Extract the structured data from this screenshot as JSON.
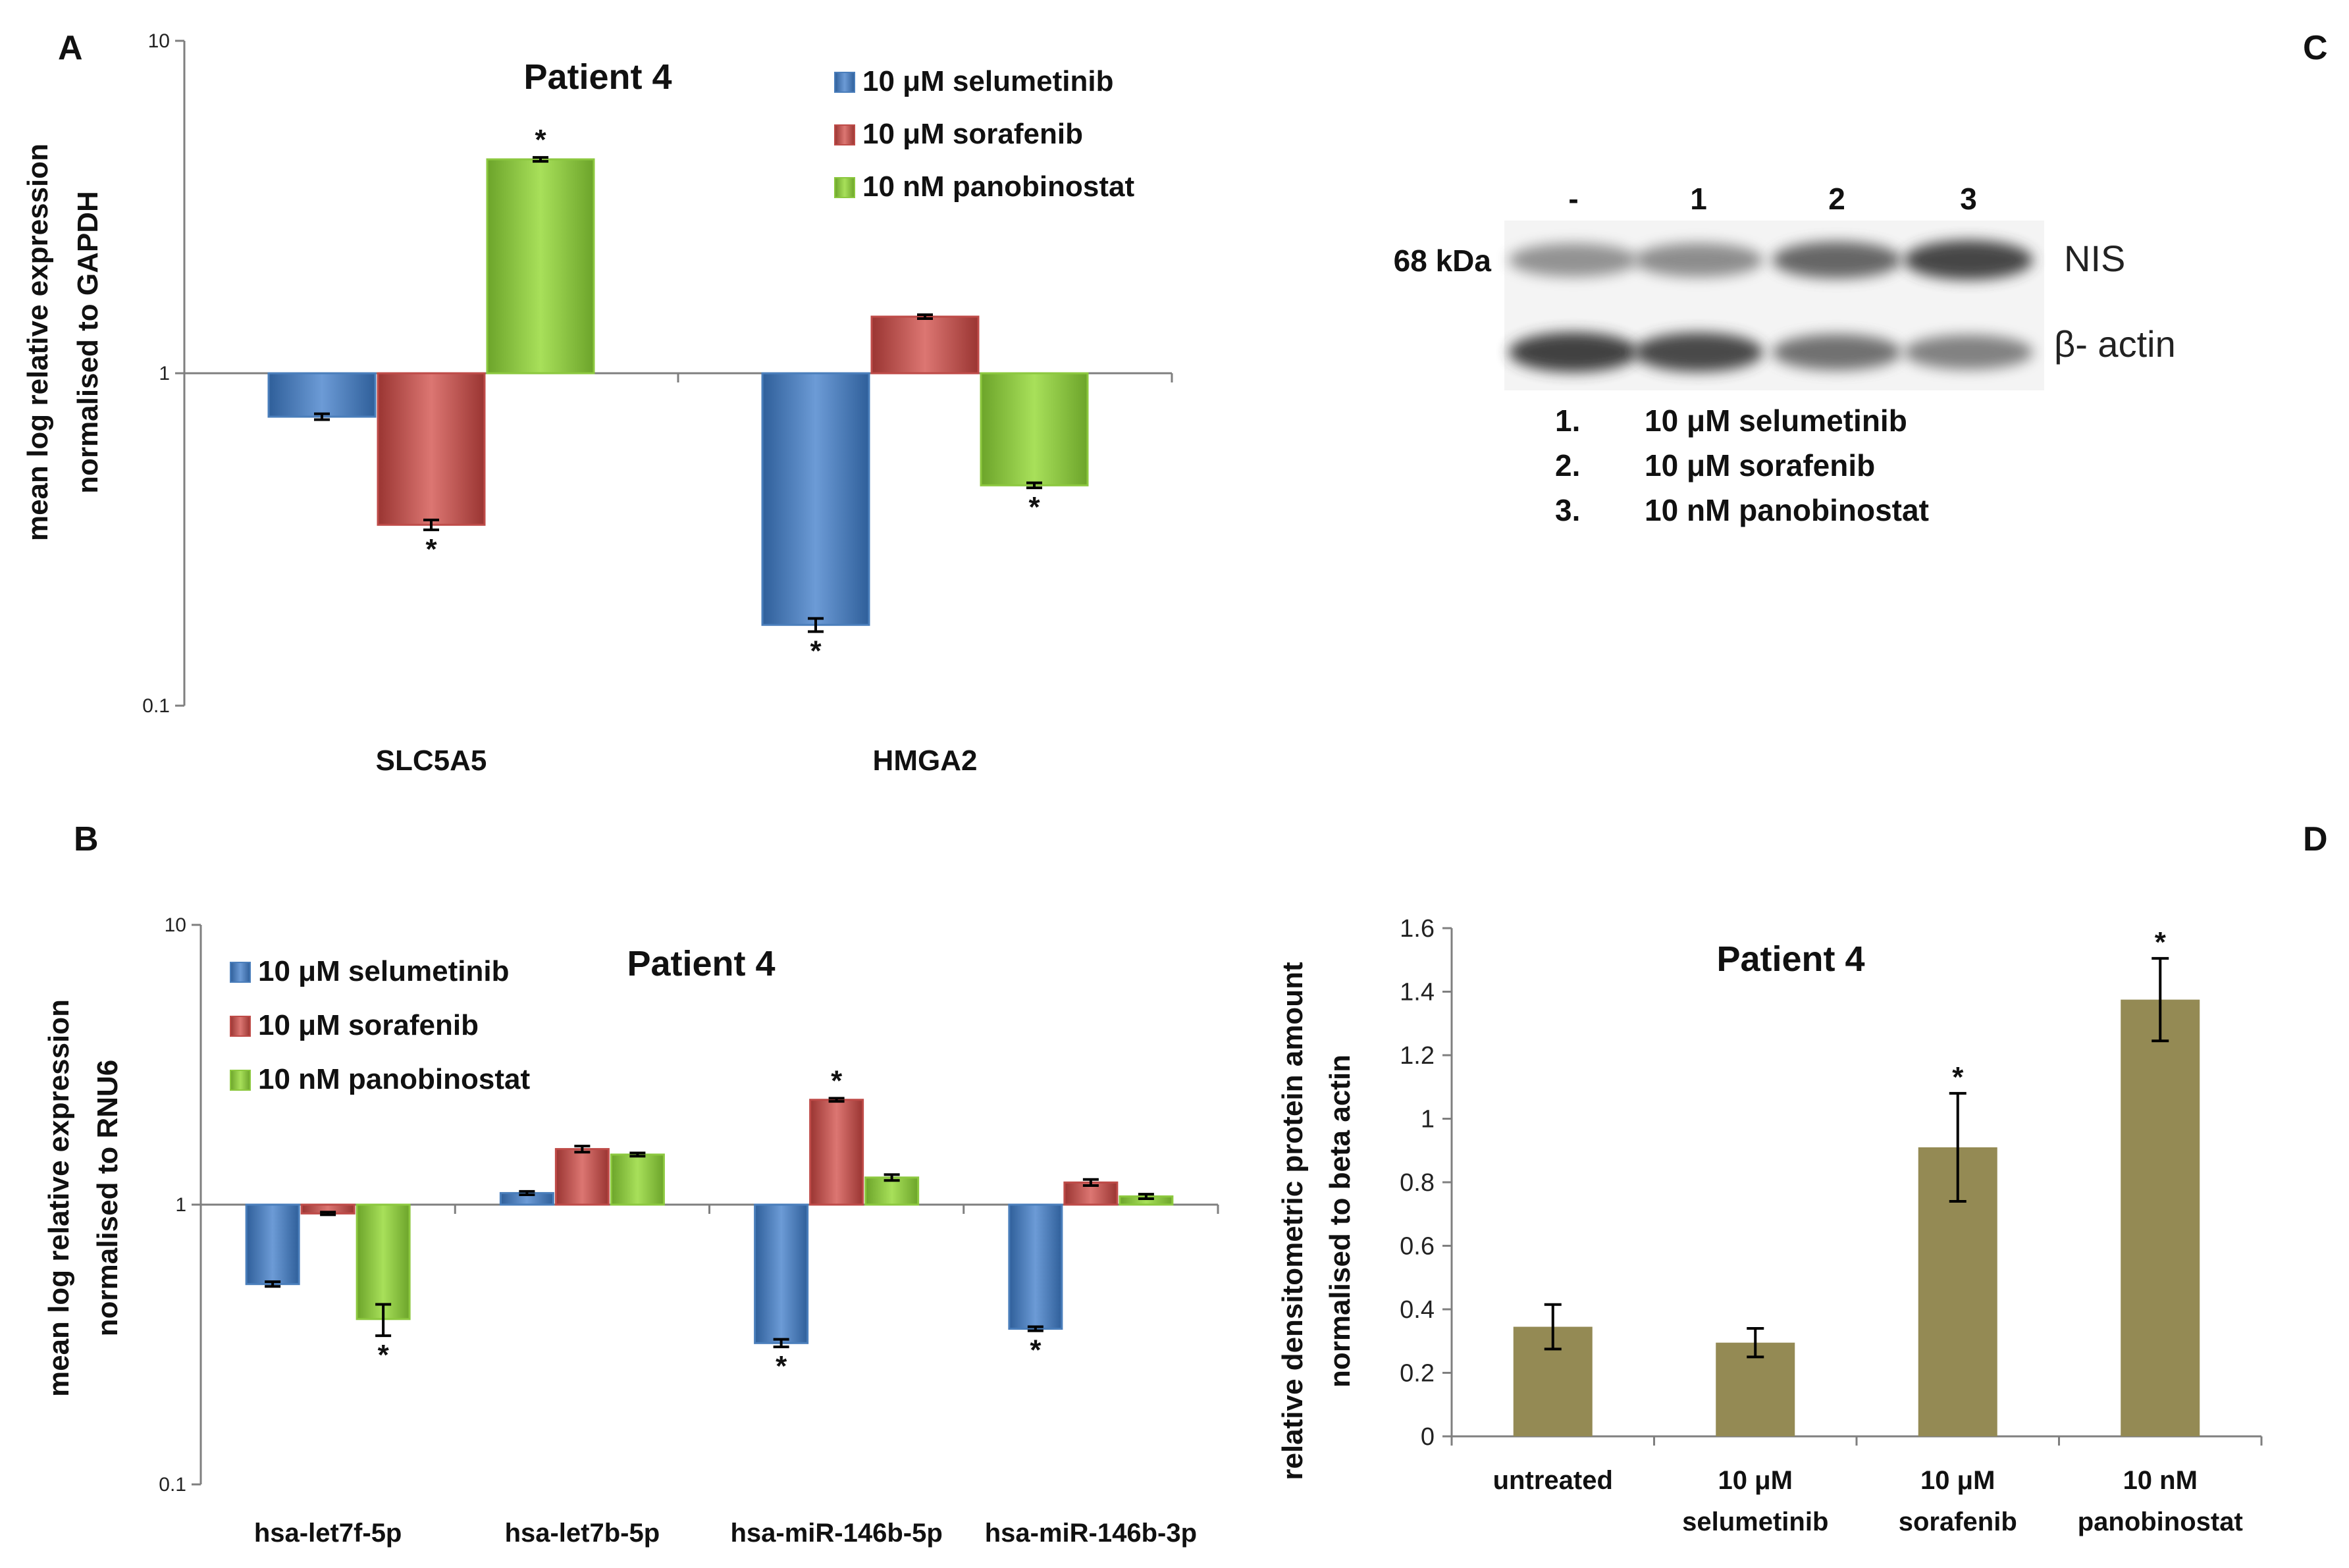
{
  "colors": {
    "selumetinib": "#4a7ebb",
    "sorafenib": "#be4b48",
    "panobinostat": "#8cc83f",
    "densitometry": "#948a54",
    "axis": "#7f7f7f"
  },
  "panels": {
    "A": "A",
    "B": "B",
    "C": "C",
    "D": "D"
  },
  "chart_data": [
    {
      "panel": "A",
      "type": "bar",
      "scale": "log",
      "title": "Patient 4",
      "ylabel_line1": "mean log relative expression",
      "ylabel_line2": "normalised to GAPDH",
      "xlabel": "",
      "ylim": [
        0.1,
        10
      ],
      "yticks": [
        "10",
        "1",
        "0.1"
      ],
      "baseline": 1,
      "legend_position": "top-right",
      "categories": [
        "SLC5A5",
        "HMGA2"
      ],
      "series": [
        {
          "name": "10 μM selumetinib",
          "values": [
            0.74,
            0.175
          ],
          "errors": [
            0.015,
            0.008
          ],
          "significant": [
            false,
            true
          ]
        },
        {
          "name": "10 μM sorafenib",
          "values": [
            0.35,
            1.48
          ],
          "errors": [
            0.012,
            0.02
          ],
          "significant": [
            true,
            false
          ]
        },
        {
          "name": "10 nM panobinostat",
          "values": [
            4.4,
            0.46
          ],
          "errors": [
            0.06,
            0.008
          ],
          "significant": [
            true,
            true
          ]
        }
      ],
      "annotation": "*"
    },
    {
      "panel": "B",
      "type": "bar",
      "scale": "log",
      "title": "Patient 4",
      "ylabel_line1": "mean log relative expression",
      "ylabel_line2": "normalised to RNU6",
      "xlabel": "",
      "ylim": [
        0.1,
        10
      ],
      "yticks": [
        "10",
        "1",
        "0.1"
      ],
      "baseline": 1,
      "legend_position": "top-left",
      "categories": [
        "hsa-let7f-5p",
        "hsa-let7b-5p",
        "hsa-miR-146b-5p",
        "hsa-miR-146b-3p"
      ],
      "series": [
        {
          "name": "10 μM selumetinib",
          "values": [
            0.52,
            1.1,
            0.32,
            0.36
          ],
          "errors": [
            0.01,
            0.015,
            0.01,
            0.006
          ],
          "significant": [
            false,
            false,
            true,
            true
          ]
        },
        {
          "name": "10 μM sorafenib",
          "values": [
            0.93,
            1.58,
            2.37,
            1.2
          ],
          "errors": [
            0.01,
            0.04,
            0.03,
            0.03
          ],
          "significant": [
            false,
            false,
            true,
            false
          ]
        },
        {
          "name": "10 nM panobinostat",
          "values": [
            0.39,
            1.51,
            1.25,
            1.07
          ],
          "errors": [
            0.05,
            0.02,
            0.03,
            0.02
          ],
          "significant": [
            true,
            false,
            false,
            false
          ]
        }
      ],
      "annotation": "*"
    },
    {
      "panel": "D",
      "type": "bar",
      "title": "Patient 4",
      "ylabel_line1": "relative densitometric protein amount",
      "ylabel_line2": "normalised to beta actin",
      "xlabel": "",
      "ylim": [
        0,
        1.6
      ],
      "yticks": [
        "0",
        "0.2",
        "0.4",
        "0.6",
        "0.8",
        "1",
        "1.2",
        "1.4",
        "1.6"
      ],
      "categories": [
        {
          "line1": "untreated",
          "line2": ""
        },
        {
          "line1": "10 μM",
          "line2": "selumetinib"
        },
        {
          "line1": "10 μM",
          "line2": "sorafenib"
        },
        {
          "line1": "10 nM",
          "line2": "panobinostat"
        }
      ],
      "values": [
        0.345,
        0.295,
        0.91,
        1.375
      ],
      "errors": [
        0.07,
        0.045,
        0.17,
        0.13
      ],
      "significant": [
        false,
        false,
        true,
        true
      ],
      "annotation": "*"
    }
  ],
  "western_blot": {
    "lanes": [
      "-",
      "1",
      "2",
      "3"
    ],
    "mw_label": "68 kDa",
    "bands": [
      {
        "name": "NIS",
        "intensity": [
          0.35,
          0.38,
          0.62,
          0.82
        ]
      },
      {
        "name": "β- actin",
        "intensity": [
          0.85,
          0.8,
          0.55,
          0.45
        ]
      }
    ],
    "key": [
      {
        "num": "1.",
        "label": "10 μM selumetinib"
      },
      {
        "num": "2.",
        "label": "10 μM sorafenib"
      },
      {
        "num": "3.",
        "label": "10 nM panobinostat"
      }
    ]
  }
}
